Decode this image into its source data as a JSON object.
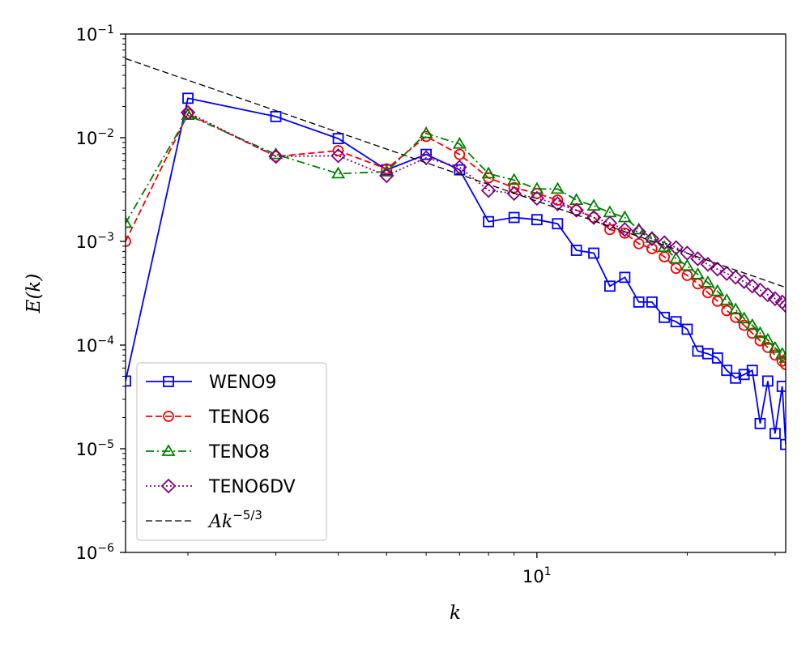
{
  "chart_data": {
    "type": "line",
    "xscale": "log",
    "yscale": "log",
    "xlabel": "k",
    "ylabel": "E(k)",
    "xlim": [
      1.5,
      31.5
    ],
    "ylim": [
      1e-06,
      0.1
    ],
    "x_tick_labels": [
      {
        "value": 10,
        "base": "10",
        "exp": "1"
      }
    ],
    "y_tick_labels": [
      {
        "value": 0.1,
        "base": "10",
        "exp": "−1"
      },
      {
        "value": 0.01,
        "base": "10",
        "exp": "−2"
      },
      {
        "value": 0.001,
        "base": "10",
        "exp": "−3"
      },
      {
        "value": 0.0001,
        "base": "10",
        "exp": "−4"
      },
      {
        "value": 1e-05,
        "base": "10",
        "exp": "−5"
      },
      {
        "value": 1e-06,
        "base": "10",
        "exp": "−6"
      }
    ],
    "legend_position": "lower-left",
    "series": [
      {
        "name": "WENO9",
        "color": "#0000ff",
        "marker": "square",
        "dash": "solid",
        "x": [
          1.5,
          2,
          3,
          4,
          5,
          6,
          7,
          8,
          9,
          10,
          11,
          12,
          13,
          14,
          15,
          16,
          17,
          18,
          19,
          20,
          21,
          22,
          23,
          24,
          25,
          26,
          27,
          28,
          29,
          30,
          31,
          31.5
        ],
        "y": [
          4.5e-05,
          0.024,
          0.016,
          0.0098,
          0.0049,
          0.0069,
          0.0049,
          0.00155,
          0.0017,
          0.00162,
          0.00148,
          0.00082,
          0.00077,
          0.00037,
          0.00045,
          0.00026,
          0.00026,
          0.000185,
          0.000168,
          0.000142,
          8.75e-05,
          8.25e-05,
          7.5e-05,
          5.7e-05,
          4.8e-05,
          5.2e-05,
          5.7e-05,
          1.75e-05,
          4.5e-05,
          1.4e-05,
          4e-05,
          1.1e-05
        ]
      },
      {
        "name": "TENO6",
        "color": "#ff0000",
        "marker": "circle",
        "dash": "dashed",
        "x": [
          1.5,
          2,
          3,
          4,
          5,
          6,
          7,
          8,
          9,
          10,
          11,
          12,
          13,
          14,
          15,
          16,
          17,
          18,
          19,
          20,
          21,
          22,
          23,
          24,
          25,
          26,
          27,
          28,
          29,
          30,
          31,
          31.5
        ],
        "y": [
          0.001,
          0.017,
          0.0066,
          0.0075,
          0.005,
          0.0103,
          0.0069,
          0.0041,
          0.0033,
          0.0029,
          0.0025,
          0.002,
          0.0017,
          0.0013,
          0.0012,
          0.00095,
          0.00085,
          0.00071,
          0.00055,
          0.00047,
          0.00039,
          0.00032,
          0.000265,
          0.000215,
          0.000185,
          0.000155,
          0.00013,
          0.00011,
          9.5e-05,
          8e-05,
          7e-05,
          6.5e-05
        ]
      },
      {
        "name": "TENO8",
        "color": "#008000",
        "marker": "triangle",
        "dash": "dashdot",
        "x": [
          1.5,
          2,
          3,
          4,
          5,
          6,
          7,
          8,
          9,
          10,
          11,
          12,
          13,
          14,
          15,
          16,
          17,
          18,
          19,
          20,
          21,
          22,
          23,
          24,
          25,
          26,
          27,
          28,
          29,
          30,
          31,
          31.5
        ],
        "y": [
          0.0015,
          0.0165,
          0.0069,
          0.0045,
          0.0047,
          0.011,
          0.0087,
          0.0045,
          0.0039,
          0.0032,
          0.0032,
          0.0025,
          0.0022,
          0.0019,
          0.0017,
          0.0013,
          0.00108,
          0.00088,
          0.00068,
          0.00058,
          0.00048,
          0.0004,
          0.00033,
          0.00027,
          0.00022,
          0.00018,
          0.000155,
          0.00013,
          0.000112,
          9.35e-05,
          8.2e-05,
          7.5e-05
        ]
      },
      {
        "name": "TENO6DV",
        "color": "#800080",
        "marker": "diamond",
        "dash": "dotted",
        "x": [
          2,
          3,
          4,
          5,
          6,
          7,
          8,
          9,
          10,
          11,
          12,
          13,
          14,
          15,
          16,
          17,
          18,
          19,
          20,
          21,
          22,
          23,
          24,
          25,
          26,
          27,
          28,
          29,
          30,
          31,
          31.5
        ],
        "y": [
          0.0175,
          0.0066,
          0.0067,
          0.0043,
          0.0064,
          0.0052,
          0.0031,
          0.0029,
          0.0026,
          0.0023,
          0.002,
          0.0017,
          0.0015,
          0.0013,
          0.00124,
          0.00106,
          0.00097,
          0.00087,
          0.00077,
          0.00068,
          0.0006,
          0.00054,
          0.00049,
          0.00045,
          0.00041,
          0.00037,
          0.00034,
          0.000305,
          0.00028,
          0.00026,
          0.00024
        ]
      },
      {
        "name": "Ak^{-5/3}",
        "color": "#000000",
        "marker": "none",
        "dash": "dashed",
        "x": [
          1.5,
          31.5
        ],
        "y": [
          0.058,
          0.00036
        ]
      }
    ],
    "legend": [
      {
        "label": "WENO9",
        "series": 0
      },
      {
        "label": "TENO6",
        "series": 1
      },
      {
        "label": "TENO8",
        "series": 2
      },
      {
        "label": "TENO6DV",
        "series": 3
      },
      {
        "label_main": "Ak",
        "label_sup": "−5/3",
        "series": 4
      }
    ]
  }
}
